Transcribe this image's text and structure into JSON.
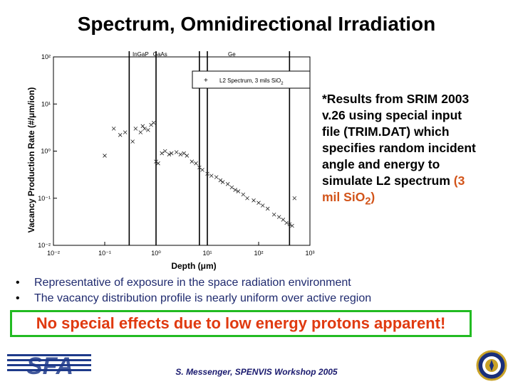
{
  "slide": {
    "title": "Spectrum, Omnidirectional Irradiation",
    "note_line1": "*Results from SRIM 2003",
    "note_line2": "v.26 using special input",
    "note_line3": "file (TRIM.DAT) which",
    "note_line4": "specifies random incident",
    "note_line5": "angle and energy to",
    "note_line6": "simulate L2 spectrum ",
    "note_highlight_open": "(3",
    "note_highlight_mid": "mil ",
    "note_highlight_sio": "SiO",
    "note_highlight_sub": "2",
    "note_highlight_close": ")",
    "bullets": [
      "Representative of exposure in the space radiation environment",
      "The vacancy distribution profile is nearly uniform over active region"
    ],
    "conclusion": "No special effects due to low energy protons apparent!",
    "logo_text": "SFA",
    "footer": "S. Messenger, SPENVIS Workshop 2005"
  },
  "colors": {
    "accent_orange": "#e03a10",
    "bullet_text": "#1f2a6e",
    "conclusion_border": "#22bb22"
  },
  "chart_data": {
    "type": "scatter",
    "xscale": "log",
    "yscale": "log",
    "xlim": [
      0.01,
      1000
    ],
    "ylim": [
      0.01,
      100
    ],
    "xlabel": "Depth (μm)",
    "ylabel": "Vacancy Production Rate (#/μm/ion)",
    "x_ticks": [
      "10⁻²",
      "10⁻¹",
      "10⁰",
      "10¹",
      "10²",
      "10³"
    ],
    "y_ticks": [
      "10⁻²",
      "10⁻¹",
      "10⁰",
      "10¹",
      "10²"
    ],
    "layer_labels": [
      {
        "text": "InGaP",
        "depth": 0.5
      },
      {
        "text": "GaAs",
        "depth": 1.2
      },
      {
        "text": "Ge",
        "depth": 30
      }
    ],
    "layer_boundaries": [
      0.3,
      1.0,
      7.0,
      10.0,
      400
    ],
    "legend": "L2 Spectrum, 3 mils SiO",
    "legend_sub": "2",
    "legend_position": "top-right",
    "series": [
      {
        "name": "L2 Spectrum, 3 mils SiO2",
        "points": [
          [
            0.1,
            0.8
          ],
          [
            0.15,
            3.0
          ],
          [
            0.2,
            2.2
          ],
          [
            0.25,
            2.5
          ],
          [
            0.35,
            1.6
          ],
          [
            0.4,
            3.0
          ],
          [
            0.5,
            2.5
          ],
          [
            0.55,
            3.4
          ],
          [
            0.6,
            3.0
          ],
          [
            0.7,
            2.8
          ],
          [
            0.8,
            3.6
          ],
          [
            0.9,
            4.0
          ],
          [
            1.0,
            0.6
          ],
          [
            1.1,
            0.55
          ],
          [
            1.3,
            0.9
          ],
          [
            1.5,
            1.0
          ],
          [
            1.8,
            0.85
          ],
          [
            2.0,
            0.9
          ],
          [
            2.5,
            0.95
          ],
          [
            3.0,
            0.85
          ],
          [
            3.5,
            0.9
          ],
          [
            4.0,
            0.8
          ],
          [
            5.0,
            0.6
          ],
          [
            6.0,
            0.55
          ],
          [
            7.0,
            0.45
          ],
          [
            8.0,
            0.4
          ],
          [
            10.0,
            0.33
          ],
          [
            12.0,
            0.3
          ],
          [
            15.0,
            0.28
          ],
          [
            18.0,
            0.24
          ],
          [
            20.0,
            0.22
          ],
          [
            25.0,
            0.2
          ],
          [
            30.0,
            0.17
          ],
          [
            35.0,
            0.15
          ],
          [
            40.0,
            0.14
          ],
          [
            50.0,
            0.12
          ],
          [
            60.0,
            0.1
          ],
          [
            80.0,
            0.09
          ],
          [
            100.0,
            0.08
          ],
          [
            120.0,
            0.07
          ],
          [
            150.0,
            0.06
          ],
          [
            200.0,
            0.045
          ],
          [
            250.0,
            0.04
          ],
          [
            300.0,
            0.035
          ],
          [
            350.0,
            0.03
          ],
          [
            400.0,
            0.028
          ],
          [
            450.0,
            0.026
          ],
          [
            500.0,
            0.1
          ]
        ]
      }
    ]
  }
}
